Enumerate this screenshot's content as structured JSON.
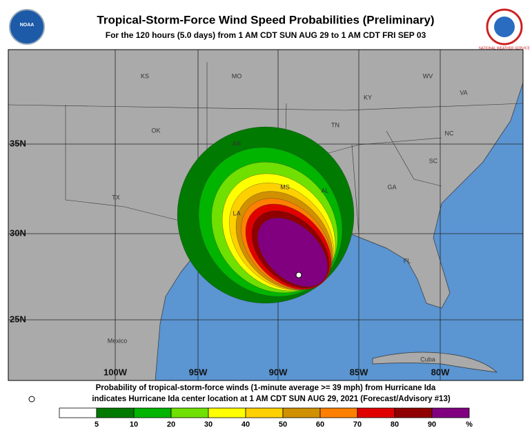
{
  "header": {
    "title": "Tropical-Storm-Force Wind Speed Probabilities (Preliminary)",
    "subtitle": "For the 120 hours (5.0 days) from 1 AM CDT SUN AUG 29 to 1 AM CDT FRI SEP 03",
    "left_logo": "NOAA",
    "right_logo": "NATIONAL WEATHER SERVICE"
  },
  "map": {
    "places": [
      "KS",
      "MO",
      "KY",
      "WV",
      "VA",
      "OK",
      "TN",
      "NC",
      "AR",
      "SC",
      "MS",
      "AL",
      "GA",
      "TX",
      "LA",
      "FL",
      "Mexico",
      "Cuba"
    ],
    "latitudes": [
      "35N",
      "30N",
      "25N"
    ],
    "longitudes": [
      "100W",
      "95W",
      "90W",
      "85W",
      "80W"
    ]
  },
  "footer": {
    "line1": "Probability of tropical-storm-force winds (1-minute average >= 39 mph) from Hurricane Ida",
    "line2": "indicates Hurricane Ida center location at 1 AM CDT SUN AUG 29, 2021 (Forecast/Advisory #13)"
  },
  "legend": {
    "colors": [
      "#ffffff",
      "#007a00",
      "#00b400",
      "#6fe000",
      "#ffff00",
      "#ffd000",
      "#d09000",
      "#ff8000",
      "#e00000",
      "#900000",
      "#800080"
    ],
    "labels": [
      "5",
      "10",
      "20",
      "30",
      "40",
      "50",
      "60",
      "70",
      "80",
      "90",
      "%"
    ]
  }
}
